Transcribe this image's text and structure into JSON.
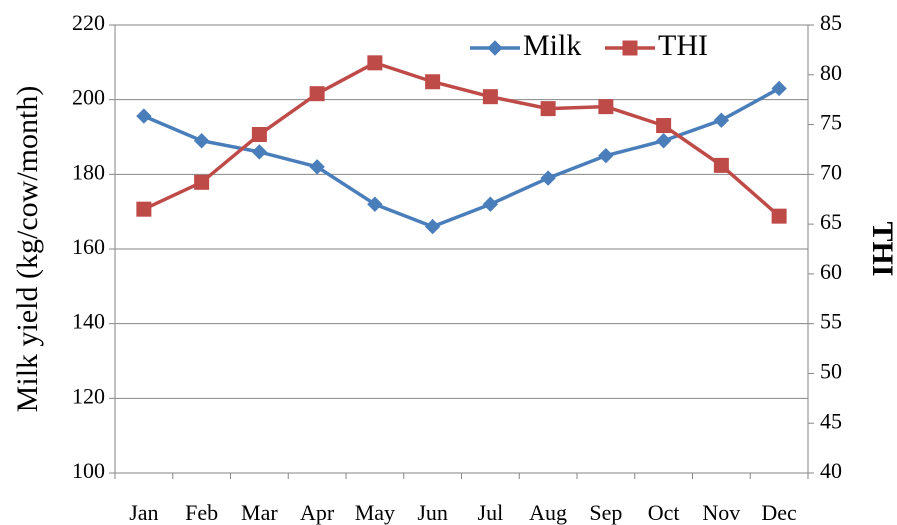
{
  "chart_data": {
    "type": "line",
    "categories": [
      "Jan",
      "Feb",
      "Mar",
      "Apr",
      "May",
      "Jun",
      "Jul",
      "Aug",
      "Sep",
      "Oct",
      "Nov",
      "Dec"
    ],
    "series": [
      {
        "name": "Milk",
        "color": "#4a7ebb",
        "marker": "diamond",
        "values": [
          195.6,
          189,
          186,
          182,
          172,
          166,
          172,
          179,
          185,
          189,
          194.5,
          203
        ]
      },
      {
        "name": "THI",
        "color": "#be4b48",
        "marker": "square",
        "axis": "y2",
        "values": [
          66.5,
          69.2,
          74,
          78.1,
          81.2,
          79.3,
          77.8,
          76.6,
          76.8,
          74.9,
          70.9,
          65.8
        ]
      }
    ],
    "ylabel": "Milk yield (kg/cow/month)",
    "y2label": "THI",
    "ylim": [
      100,
      220
    ],
    "yticks": [
      100,
      120,
      140,
      160,
      180,
      200,
      220
    ],
    "y2lim": [
      40,
      85
    ],
    "y2ticks": [
      40,
      45,
      50,
      55,
      60,
      65,
      70,
      75,
      80,
      85
    ],
    "grid": true,
    "legend": "upper right"
  }
}
